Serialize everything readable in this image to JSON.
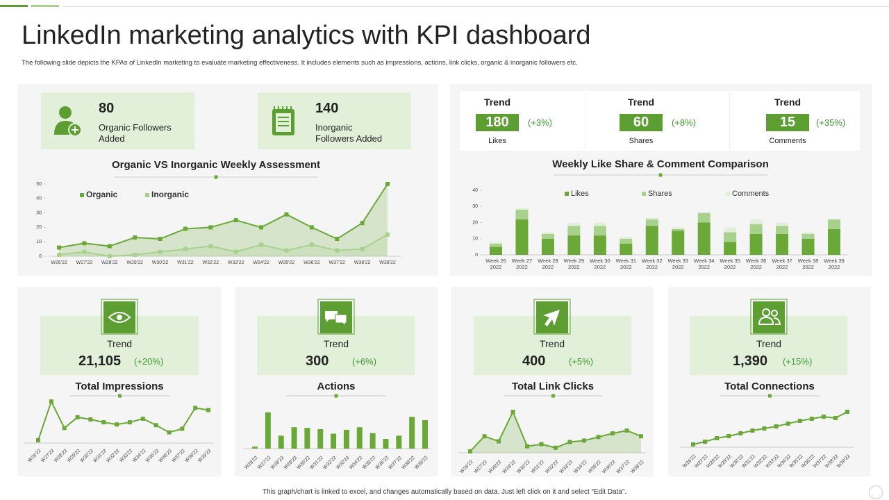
{
  "title": "LinkedIn marketing analytics with KPI dashboard",
  "subtitle": "The following slide depicts the KPAs of LinkedIn marketing to evaluate marketing effectiveness. It includes elements such as impressions, actions, link clicks, organic & inorganic followers etc.",
  "footer": "This graph/chart is linked to excel, and changes automatically based on data. Just left click on it and select “Edit Data”.",
  "followers": [
    {
      "value": 80,
      "label": "Organic Followers Added"
    },
    {
      "value": 140,
      "label": "Inorganic Followers Added"
    }
  ],
  "engagement": [
    {
      "heading": "Trend",
      "value": 180,
      "change": "(+3%)",
      "label": "Likes"
    },
    {
      "heading": "Trend",
      "value": 60,
      "change": "(+8%)",
      "label": "Shares"
    },
    {
      "heading": "Trend",
      "value": 15,
      "change": "(+35%)",
      "label": "Comments"
    }
  ],
  "kpi_cards": [
    {
      "heading": "Trend",
      "value": "21,105",
      "change": "(+20%)"
    },
    {
      "heading": "Trend",
      "value": "300",
      "change": "(+6%)"
    },
    {
      "heading": "Trend",
      "value": "400",
      "change": "(+5%)"
    },
    {
      "heading": "Trend",
      "value": "1,390",
      "change": "(+15%)"
    }
  ],
  "chart_data": [
    {
      "type": "area",
      "title": "Organic VS Inorganic Weekly Assessment",
      "categories": [
        "W26'22",
        "W27'22",
        "W28'22",
        "W29'22",
        "W30'22",
        "W31'22",
        "W32'22",
        "W33'22",
        "W34'22",
        "W35'22",
        "W36'22",
        "W37'22",
        "W38'22",
        "W39'22"
      ],
      "series": [
        {
          "name": "Organic",
          "color": "#6aa837",
          "values": [
            6,
            9,
            7,
            13,
            12,
            19,
            20,
            25,
            20,
            29,
            20,
            12,
            23,
            50
          ]
        },
        {
          "name": "Inorganic",
          "color": "#a9d18e",
          "values": [
            1,
            3,
            0,
            1,
            3,
            5,
            7,
            3,
            8,
            4,
            8,
            4,
            5,
            15
          ]
        }
      ],
      "ylim": [
        0,
        50
      ],
      "yticks": [
        0,
        10,
        20,
        30,
        40,
        50
      ],
      "legend": "top-left"
    },
    {
      "type": "stacked_bar",
      "title": "Weekly Like Share & Comment Comparison",
      "categories": [
        "Week 26 2022",
        "Week 27 2022",
        "Week 28 2022",
        "Week 29 2022",
        "Week 30 2022",
        "Week 31 2022",
        "Week 32 2022",
        "Week 33 2022",
        "Week 34 2022",
        "Week 35 2022",
        "Week 36 2022",
        "Week 37 2022",
        "Week 38 2022",
        "Week 39 2022"
      ],
      "series": [
        {
          "name": "Likes",
          "color": "#6aa837",
          "values": [
            5,
            22,
            10,
            12,
            12,
            7,
            18,
            15,
            20,
            8,
            13,
            13,
            10,
            16
          ]
        },
        {
          "name": "Shares",
          "color": "#a9d18e",
          "values": [
            2,
            6,
            3,
            6,
            6,
            3,
            4,
            1,
            6,
            6,
            6,
            5,
            3,
            6
          ]
        },
        {
          "name": "Comments",
          "color": "#e2f0d9",
          "values": [
            1,
            1,
            1,
            2,
            2,
            1,
            1,
            1,
            0,
            3,
            3,
            2,
            1,
            0
          ]
        }
      ],
      "ylim": [
        0,
        40
      ],
      "yticks": [
        0,
        10,
        20,
        30,
        40
      ],
      "legend": "top"
    },
    {
      "type": "line",
      "title": "Total Impressions",
      "color": "#6aa837",
      "categories": [
        "W26'22",
        "W27'22",
        "W28'22",
        "W29'22",
        "W30'22",
        "W31'22",
        "W32'22",
        "W33'22",
        "W34'22",
        "W35'22",
        "W36'22",
        "W37'22",
        "W38'22",
        "W39'22"
      ],
      "values": [
        2,
        56,
        19,
        34,
        31,
        27,
        24,
        27,
        32,
        23,
        13,
        18,
        47,
        44
      ],
      "ylim": [
        0,
        60
      ]
    },
    {
      "type": "bar",
      "title": "Actions",
      "color": "#6aa837",
      "categories": [
        "W26'22",
        "W27'22",
        "W28'22",
        "W29'22",
        "W30'22",
        "W31'22",
        "W32'22",
        "W33'22",
        "W34'22",
        "W35'22",
        "W36'22",
        "W37'22",
        "W38'22",
        "W39'22"
      ],
      "values": [
        3,
        56,
        20,
        33,
        32,
        30,
        23,
        29,
        33,
        24,
        15,
        20,
        49,
        44
      ],
      "ylim": [
        0,
        60
      ]
    },
    {
      "type": "area",
      "title": "Total Link Clicks",
      "color": "#6aa837",
      "categories": [
        "W26'22",
        "W27'22",
        "W28'22",
        "W29'22",
        "W30'22",
        "W31'22",
        "W32'22",
        "W33'22",
        "W34'22",
        "W35'22",
        "W36'22",
        "W37'22",
        "W38'22"
      ],
      "values": [
        2,
        23,
        16,
        57,
        9,
        12,
        7,
        15,
        17,
        22,
        27,
        31,
        23
      ],
      "ylim": [
        0,
        60
      ]
    },
    {
      "type": "line",
      "title": "Total Connections",
      "color": "#6aa837",
      "categories": [
        "W26'22",
        "W27'22",
        "W28'22",
        "W29'22",
        "W30'22",
        "W31'22",
        "W32'22",
        "W33'22",
        "W34'22",
        "W35'22",
        "W36'22",
        "W37'22",
        "W38'22",
        "W39'22"
      ],
      "values": [
        4,
        8,
        13,
        16,
        20,
        24,
        27,
        30,
        34,
        38,
        41,
        44,
        42,
        51
      ],
      "ylim": [
        0,
        60
      ]
    }
  ]
}
